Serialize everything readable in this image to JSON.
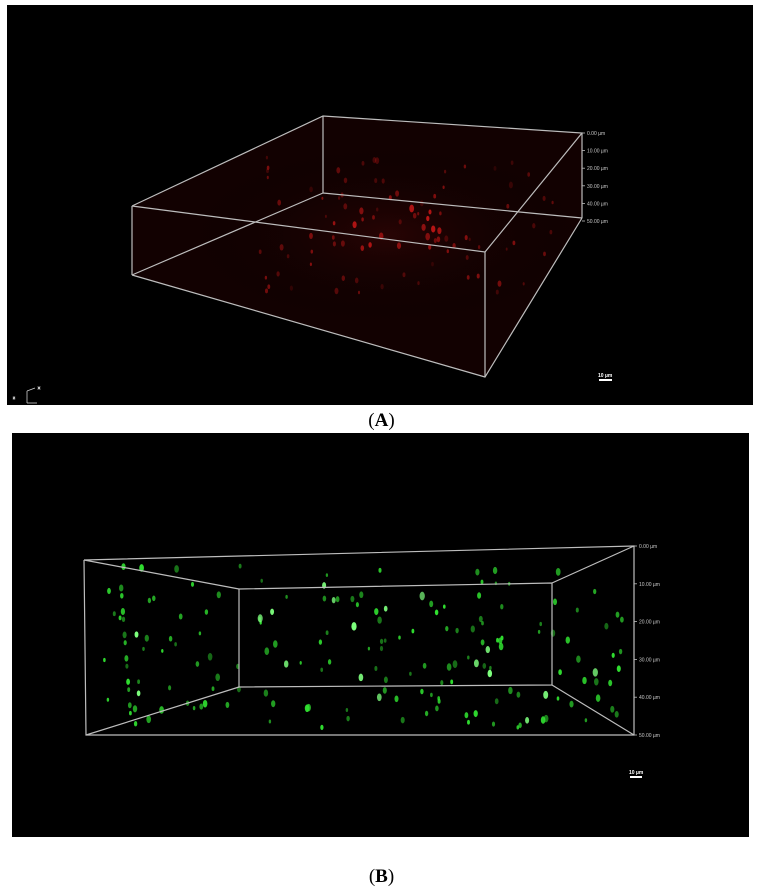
{
  "figure": {
    "panels": [
      {
        "id": "A",
        "caption_open": "(",
        "caption_letter": "A",
        "caption_close": ")",
        "channel_color": "#d01818",
        "depth_labels": [
          "0.00 µm",
          "10.00 µm",
          "20.00 µm",
          "30.00 µm",
          "40.00 µm",
          "50.00 µm"
        ],
        "scale_bar_label": "10 µm"
      },
      {
        "id": "B",
        "caption_open": "(",
        "caption_letter": "B",
        "caption_close": ")",
        "channel_color": "#30e030",
        "depth_labels": [
          "0.00 µm",
          "10.00 µm",
          "20.00 µm",
          "30.00 µm",
          "40.00 µm",
          "50.00 µm"
        ],
        "scale_bar_label": "10 µm"
      }
    ],
    "box_line_color": "#bdbdbd",
    "icon_names": [
      "axis-orientation-icon"
    ]
  }
}
